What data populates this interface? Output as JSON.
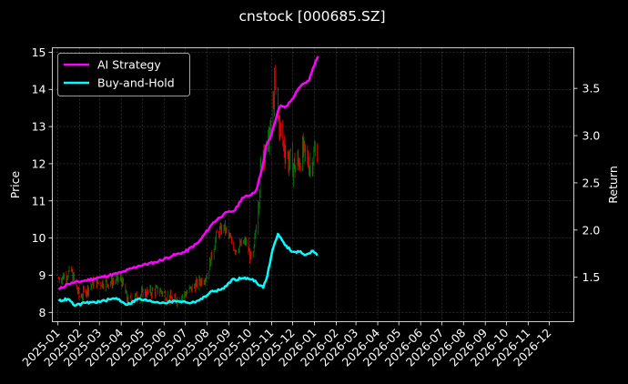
{
  "chart_data": {
    "type": "line",
    "title": "cnstock [000685.SZ]",
    "ylabel": "Price",
    "y2label": "Return",
    "grid": true,
    "legend_position": "top-left",
    "x_tick_labels": [
      "2025-01",
      "2025-02",
      "2025-03",
      "2025-04",
      "2025-05",
      "2025-06",
      "2025-07",
      "2025-08",
      "2025-09",
      "2025-10",
      "2025-11",
      "2025-12",
      "2026-01",
      "2026-02",
      "2026-03",
      "2026-04",
      "2026-05",
      "2026-06",
      "2026-07",
      "2026-08",
      "2026-09",
      "2026-10",
      "2026-11",
      "2026-12"
    ],
    "xlim": [
      "2024-12-24",
      "2027-01-05"
    ],
    "y_ticks": [
      8,
      9,
      10,
      11,
      12,
      13,
      14,
      15
    ],
    "ylim": [
      7.75,
      15.12
    ],
    "y2_ticks": [
      1.5,
      2.0,
      2.5,
      3.0,
      3.5
    ],
    "y2lim": [
      1.03,
      3.93
    ],
    "colors": {
      "background": "#000000",
      "ai_strategy": "#ff00ff",
      "buy_and_hold": "#00ffff",
      "up": "#008000",
      "down": "#ff0000",
      "grid": "#555555",
      "text": "#ffffff"
    },
    "series": [
      {
        "name": "AI Strategy",
        "axis": "right",
        "color": "#ff00ff",
        "points": [
          [
            "2025-01-02",
            1.37
          ],
          [
            "2025-01-15",
            1.43
          ],
          [
            "2025-02-05",
            1.46
          ],
          [
            "2025-03-03",
            1.5
          ],
          [
            "2025-04-01",
            1.55
          ],
          [
            "2025-04-25",
            1.62
          ],
          [
            "2025-05-20",
            1.66
          ],
          [
            "2025-06-13",
            1.73
          ],
          [
            "2025-07-01",
            1.77
          ],
          [
            "2025-07-20",
            1.87
          ],
          [
            "2025-08-10",
            2.08
          ],
          [
            "2025-08-25",
            2.17
          ],
          [
            "2025-09-10",
            2.21
          ],
          [
            "2025-09-20",
            2.34
          ],
          [
            "2025-09-29",
            2.36
          ],
          [
            "2025-10-10",
            2.42
          ],
          [
            "2025-10-16",
            2.58
          ],
          [
            "2025-10-20",
            2.71
          ],
          [
            "2025-10-24",
            2.89
          ],
          [
            "2025-10-30",
            2.97
          ],
          [
            "2025-11-05",
            3.12
          ],
          [
            "2025-11-10",
            3.26
          ],
          [
            "2025-11-14",
            3.32
          ],
          [
            "2025-11-20",
            3.3
          ],
          [
            "2025-11-28",
            3.36
          ],
          [
            "2025-12-08",
            3.48
          ],
          [
            "2025-12-16",
            3.55
          ],
          [
            "2025-12-24",
            3.58
          ],
          [
            "2025-12-30",
            3.72
          ],
          [
            "2026-01-06",
            3.84
          ]
        ]
      },
      {
        "name": "Buy-and-Hold",
        "axis": "right",
        "color": "#00ffff",
        "points": [
          [
            "2025-01-02",
            1.25
          ],
          [
            "2025-01-15",
            1.27
          ],
          [
            "2025-01-25",
            1.2
          ],
          [
            "2025-02-10",
            1.23
          ],
          [
            "2025-03-01",
            1.24
          ],
          [
            "2025-03-25",
            1.28
          ],
          [
            "2025-04-10",
            1.21
          ],
          [
            "2025-04-25",
            1.27
          ],
          [
            "2025-05-10",
            1.25
          ],
          [
            "2025-06-01",
            1.23
          ],
          [
            "2025-06-20",
            1.25
          ],
          [
            "2025-07-10",
            1.23
          ],
          [
            "2025-07-25",
            1.27
          ],
          [
            "2025-08-05",
            1.34
          ],
          [
            "2025-08-25",
            1.38
          ],
          [
            "2025-09-05",
            1.47
          ],
          [
            "2025-09-20",
            1.49
          ],
          [
            "2025-10-05",
            1.48
          ],
          [
            "2025-10-20",
            1.39
          ],
          [
            "2025-10-26",
            1.52
          ],
          [
            "2025-11-02",
            1.78
          ],
          [
            "2025-11-10",
            1.96
          ],
          [
            "2025-11-20",
            1.84
          ],
          [
            "2025-12-01",
            1.77
          ],
          [
            "2025-12-10",
            1.77
          ],
          [
            "2025-12-20",
            1.74
          ],
          [
            "2025-12-30",
            1.78
          ],
          [
            "2026-01-05",
            1.73
          ]
        ]
      }
    ],
    "price_series": {
      "name": "Price",
      "axis": "left",
      "points": [
        [
          "2025-01-02",
          8.9
        ],
        [
          "2025-01-20",
          9.1
        ],
        [
          "2025-02-01",
          8.4
        ],
        [
          "2025-02-20",
          8.8
        ],
        [
          "2025-03-15",
          8.8
        ],
        [
          "2025-04-01",
          8.9
        ],
        [
          "2025-04-10",
          8.3
        ],
        [
          "2025-05-01",
          8.5
        ],
        [
          "2025-05-25",
          8.6
        ],
        [
          "2025-06-15",
          8.3
        ],
        [
          "2025-07-01",
          8.5
        ],
        [
          "2025-07-20",
          8.8
        ],
        [
          "2025-08-01",
          9.0
        ],
        [
          "2025-08-15",
          10.1
        ],
        [
          "2025-08-25",
          10.3
        ],
        [
          "2025-09-10",
          9.7
        ],
        [
          "2025-09-25",
          9.9
        ],
        [
          "2025-10-05",
          9.3
        ],
        [
          "2025-10-16",
          11.7
        ],
        [
          "2025-10-20",
          12.6
        ],
        [
          "2025-10-24",
          12.3
        ],
        [
          "2025-11-01",
          13.0
        ],
        [
          "2025-11-05",
          14.1
        ],
        [
          "2025-11-10",
          13.3
        ],
        [
          "2025-11-15",
          12.7
        ],
        [
          "2025-11-25",
          12.1
        ],
        [
          "2025-12-05",
          11.9
        ],
        [
          "2025-12-15",
          12.3
        ],
        [
          "2025-12-25",
          12.0
        ],
        [
          "2026-01-05",
          12.4
        ]
      ]
    }
  }
}
